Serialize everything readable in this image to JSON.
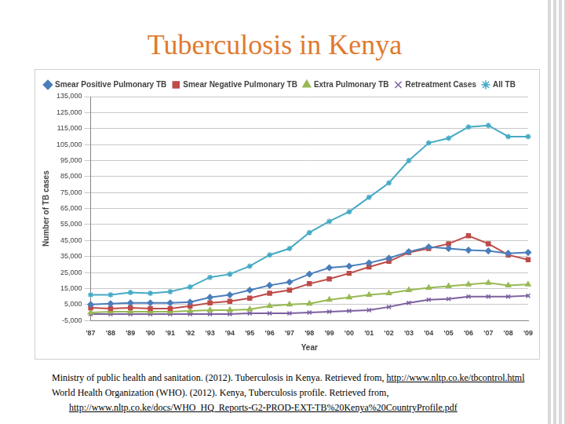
{
  "chart_data": {
    "type": "line",
    "title": "Tuberculosis in Kenya",
    "x_label": "Year",
    "y_label": "Number of TB cases",
    "categories": [
      "'87",
      "'88",
      "'89",
      "'90",
      "'91",
      "'92",
      "'93",
      "'94",
      "'95",
      "'96",
      "'97",
      "'98",
      "'99",
      "'00",
      "'01",
      "'02",
      "'03",
      "'04",
      "'05",
      "'06",
      "'07",
      "'08",
      "'09"
    ],
    "series": [
      {
        "name": "Smear Positive Pulmonary TB",
        "color": "#4a7ebb",
        "marker": "diamond",
        "values": [
          5000,
          5500,
          6000,
          6000,
          6000,
          6500,
          9500,
          11000,
          14000,
          17000,
          19000,
          24000,
          28000,
          29000,
          31000,
          34000,
          38000,
          41000,
          40000,
          39000,
          38500,
          37000,
          37500
        ]
      },
      {
        "name": "Smear Negative Pulmonary TB",
        "color": "#be4b48",
        "marker": "square",
        "values": [
          3000,
          2500,
          3000,
          2500,
          2500,
          4000,
          6000,
          7000,
          9000,
          12000,
          14000,
          18000,
          21000,
          24500,
          28500,
          32000,
          37500,
          40000,
          43000,
          48000,
          43000,
          36000,
          33000
        ]
      },
      {
        "name": "Extra Pulmonary TB",
        "color": "#98b954",
        "marker": "triangle",
        "values": [
          0,
          500,
          500,
          500,
          500,
          1000,
          1500,
          1500,
          2000,
          4000,
          5000,
          5500,
          8000,
          9500,
          11000,
          12000,
          14000,
          15500,
          16500,
          17500,
          18500,
          17000,
          17500
        ]
      },
      {
        "name": "Retreatment Cases",
        "color": "#7d60a0",
        "marker": "x",
        "values": [
          -1000,
          -1000,
          -1000,
          -1000,
          -1000,
          -1000,
          -1000,
          -1000,
          -500,
          -500,
          -500,
          0,
          500,
          1000,
          1500,
          3500,
          6000,
          8000,
          8500,
          10000,
          10000,
          10000,
          10500
        ]
      },
      {
        "name": "All TB",
        "color": "#46aac5",
        "marker": "star",
        "values": [
          11000,
          11000,
          12500,
          12000,
          13000,
          16000,
          22000,
          24000,
          29000,
          36000,
          40000,
          50000,
          57000,
          63000,
          72000,
          81000,
          95000,
          106000,
          109000,
          116000,
          117000,
          110000,
          110000
        ]
      }
    ],
    "ylim": [
      -5000,
      135000
    ],
    "yticks": [
      {
        "value": -5000,
        "label": "-5,000"
      },
      {
        "value": 5000,
        "label": "5,000"
      },
      {
        "value": 15000,
        "label": "15,000"
      },
      {
        "value": 25000,
        "label": "25,000"
      },
      {
        "value": 35000,
        "label": "35,000"
      },
      {
        "value": 45000,
        "label": "45,000"
      },
      {
        "value": 55000,
        "label": "55,000"
      },
      {
        "value": 65000,
        "label": "65,000"
      },
      {
        "value": 75000,
        "label": "75,000"
      },
      {
        "value": 85000,
        "label": "85,000"
      },
      {
        "value": 95000,
        "label": "95,000"
      },
      {
        "value": 105000,
        "label": "105,000"
      },
      {
        "value": 115000,
        "label": "115,000"
      },
      {
        "value": 125000,
        "label": "125,000"
      },
      {
        "value": 135000,
        "label": "135,000"
      }
    ],
    "grid": true,
    "legend": "top"
  },
  "references": [
    {
      "text": "Ministry of public health and sanitation. (2012). Tuberculosis in Kenya. Retrieved from,",
      "url": "http://www.nltp.co.ke/tbcontrol.html"
    },
    {
      "text": "World Health Organization (WHO). (2012). Kenya, Tuberculosis profile. Retrieved from,",
      "url": "http://www.nltp.co.ke/docs/WHO_HQ_Reports-G2-PROD-EXT-TB%20Kenya%20CountryProfile.pdf"
    }
  ]
}
